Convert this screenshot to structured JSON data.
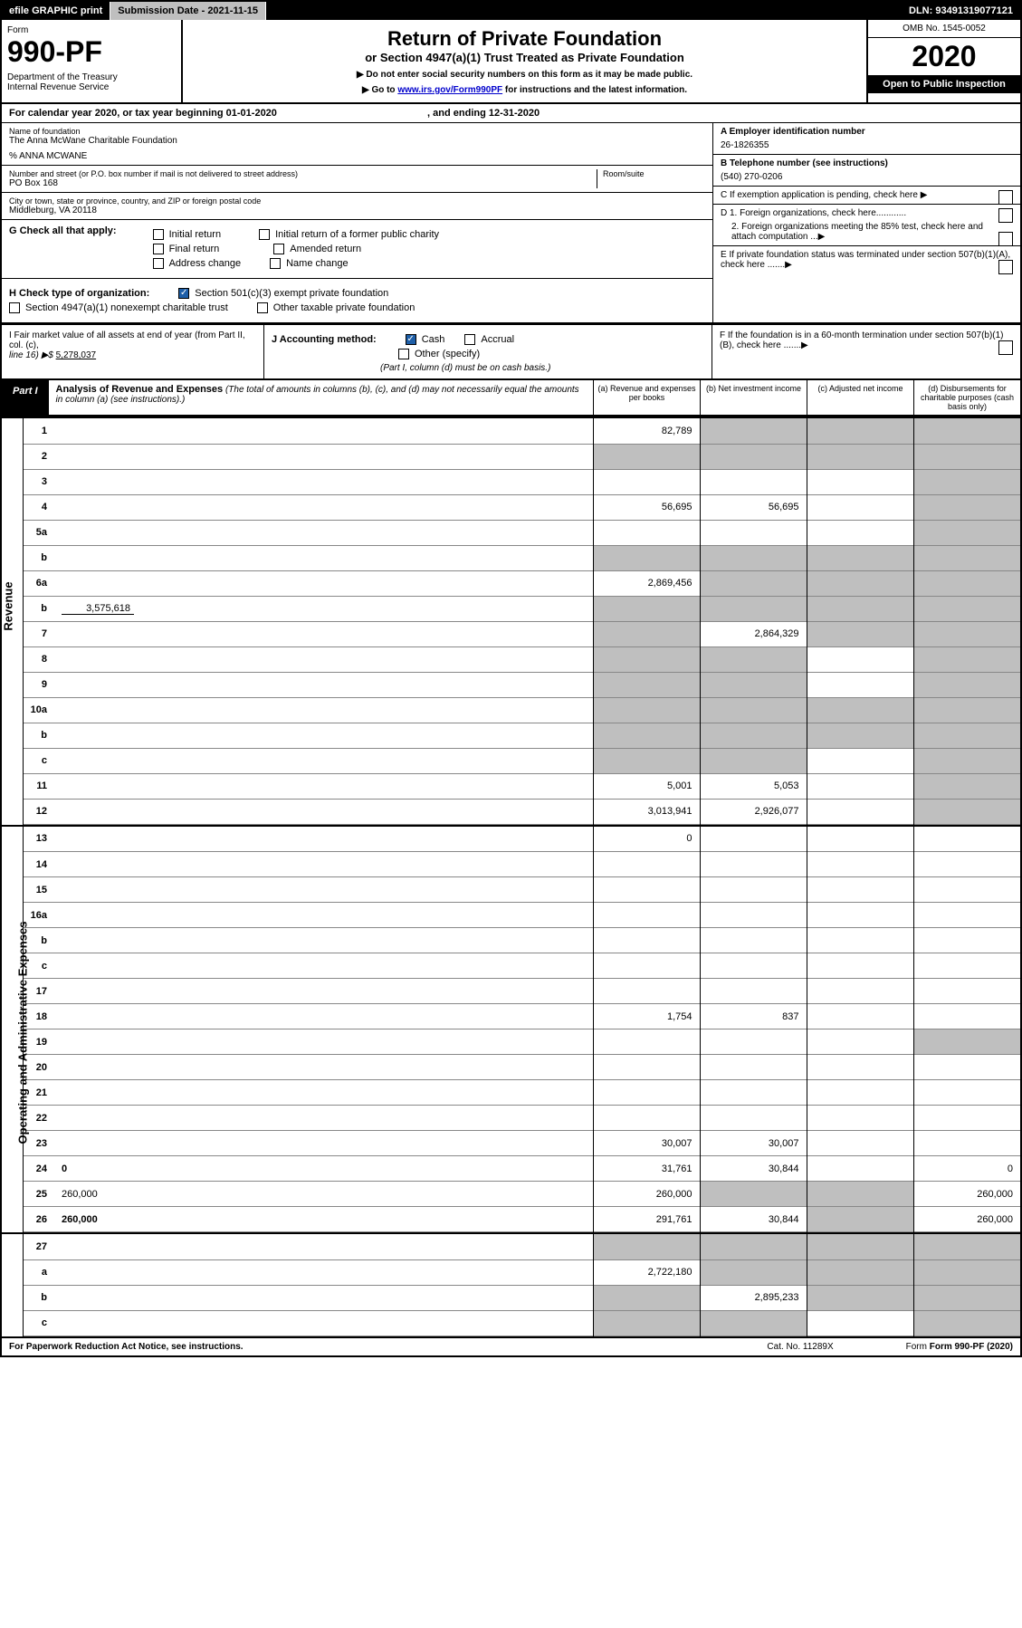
{
  "topbar": {
    "efile": "efile GRAPHIC print",
    "subdate_label": "Submission Date - 2021-11-15",
    "dln": "DLN: 93491319077121"
  },
  "header": {
    "form_label": "Form",
    "form_num": "990-PF",
    "dept": "Department of the Treasury\nInternal Revenue Service",
    "title": "Return of Private Foundation",
    "subtitle": "or Section 4947(a)(1) Trust Treated as Private Foundation",
    "instr1": "▶ Do not enter social security numbers on this form as it may be made public.",
    "instr2_pre": "▶ Go to ",
    "instr2_link": "www.irs.gov/Form990PF",
    "instr2_post": " for instructions and the latest information.",
    "omb": "OMB No. 1545-0052",
    "year": "2020",
    "open": "Open to Public Inspection"
  },
  "calendar": {
    "text_pre": "For calendar year 2020, or tax year beginning 01-01-2020",
    "text_mid": ", and ending 12-31-2020"
  },
  "foundation": {
    "name_label": "Name of foundation",
    "name": "The Anna McWane Charitable Foundation",
    "care_of": "% ANNA MCWANE",
    "addr_label": "Number and street (or P.O. box number if mail is not delivered to street address)",
    "addr": "PO Box 168",
    "room_label": "Room/suite",
    "city_label": "City or town, state or province, country, and ZIP or foreign postal code",
    "city": "Middleburg, VA  20118",
    "ein_label": "A Employer identification number",
    "ein": "26-1826355",
    "phone_label": "B Telephone number (see instructions)",
    "phone": "(540) 270-0206",
    "c_label": "C If exemption application is pending, check here"
  },
  "checks": {
    "g_label": "G Check all that apply:",
    "g_opts": [
      "Initial return",
      "Initial return of a former public charity",
      "Final return",
      "Amended return",
      "Address change",
      "Name change"
    ],
    "h_label": "H Check type of organization:",
    "h_opts": [
      "Section 501(c)(3) exempt private foundation",
      "Section 4947(a)(1) nonexempt charitable trust",
      "Other taxable private foundation"
    ],
    "d1": "D 1. Foreign organizations, check here............",
    "d2": "2. Foreign organizations meeting the 85% test, check here and attach computation ...",
    "e": "E  If private foundation status was terminated under section 507(b)(1)(A), check here .......",
    "f": "F  If the foundation is in a 60-month termination under section 507(b)(1)(B), check here .......",
    "i_label": "I Fair market value of all assets at end of year (from Part II, col. (c),",
    "i_line": "line 16) ▶$",
    "i_val": "5,278,037",
    "j_label": "J Accounting method:",
    "j_cash": "Cash",
    "j_accrual": "Accrual",
    "j_other": "Other (specify)",
    "j_note": "(Part I, column (d) must be on cash basis.)"
  },
  "part1": {
    "label": "Part I",
    "title": "Analysis of Revenue and Expenses",
    "note": "(The total of amounts in columns (b), (c), and (d) may not necessarily equal the amounts in column (a) (see instructions).)",
    "col_a": "(a)   Revenue and expenses per books",
    "col_b": "(b)   Net investment income",
    "col_c": "(c)  Adjusted net income",
    "col_d": "(d)  Disbursements for charitable purposes (cash basis only)"
  },
  "sections": {
    "revenue": "Revenue",
    "expenses": "Operating and Administrative Expenses"
  },
  "rows": [
    {
      "n": "1",
      "d": "",
      "a": "82,789",
      "b": "",
      "c": "",
      "shade": [
        "b",
        "c",
        "d"
      ]
    },
    {
      "n": "2",
      "d": "",
      "a": "",
      "b": "",
      "c": "",
      "shade": [
        "a",
        "b",
        "c",
        "d"
      ]
    },
    {
      "n": "3",
      "d": "",
      "a": "",
      "b": "",
      "c": "",
      "shade": [
        "d"
      ]
    },
    {
      "n": "4",
      "d": "",
      "a": "56,695",
      "b": "56,695",
      "c": "",
      "shade": [
        "d"
      ]
    },
    {
      "n": "5a",
      "d": "",
      "a": "",
      "b": "",
      "c": "",
      "shade": [
        "d"
      ]
    },
    {
      "n": "b",
      "d": "",
      "a": "",
      "b": "",
      "c": "",
      "shade": [
        "a",
        "b",
        "c",
        "d"
      ]
    },
    {
      "n": "6a",
      "d": "",
      "a": "2,869,456",
      "b": "",
      "c": "",
      "shade": [
        "b",
        "c",
        "d"
      ]
    },
    {
      "n": "b",
      "d": "",
      "inline": "3,575,618",
      "a": "",
      "b": "",
      "c": "",
      "shade": [
        "a",
        "b",
        "c",
        "d"
      ]
    },
    {
      "n": "7",
      "d": "",
      "a": "",
      "b": "2,864,329",
      "c": "",
      "shade": [
        "a",
        "c",
        "d"
      ]
    },
    {
      "n": "8",
      "d": "",
      "a": "",
      "b": "",
      "c": "",
      "shade": [
        "a",
        "b",
        "d"
      ]
    },
    {
      "n": "9",
      "d": "",
      "a": "",
      "b": "",
      "c": "",
      "shade": [
        "a",
        "b",
        "d"
      ]
    },
    {
      "n": "10a",
      "d": "",
      "a": "",
      "b": "",
      "c": "",
      "shade": [
        "a",
        "b",
        "c",
        "d"
      ]
    },
    {
      "n": "b",
      "d": "",
      "a": "",
      "b": "",
      "c": "",
      "shade": [
        "a",
        "b",
        "c",
        "d"
      ]
    },
    {
      "n": "c",
      "d": "",
      "a": "",
      "b": "",
      "c": "",
      "shade": [
        "a",
        "b",
        "d"
      ]
    },
    {
      "n": "11",
      "d": "",
      "a": "5,001",
      "b": "5,053",
      "c": "",
      "shade": [
        "d"
      ]
    },
    {
      "n": "12",
      "d": "",
      "bold": true,
      "a": "3,013,941",
      "b": "2,926,077",
      "c": "",
      "shade": [
        "d"
      ]
    }
  ],
  "exp_rows": [
    {
      "n": "13",
      "d": "",
      "a": "0",
      "b": "",
      "c": ""
    },
    {
      "n": "14",
      "d": "",
      "a": "",
      "b": "",
      "c": ""
    },
    {
      "n": "15",
      "d": "",
      "a": "",
      "b": "",
      "c": ""
    },
    {
      "n": "16a",
      "d": "",
      "a": "",
      "b": "",
      "c": ""
    },
    {
      "n": "b",
      "d": "",
      "a": "",
      "b": "",
      "c": ""
    },
    {
      "n": "c",
      "d": "",
      "a": "",
      "b": "",
      "c": ""
    },
    {
      "n": "17",
      "d": "",
      "a": "",
      "b": "",
      "c": ""
    },
    {
      "n": "18",
      "d": "",
      "a": "1,754",
      "b": "837",
      "c": ""
    },
    {
      "n": "19",
      "d": "",
      "a": "",
      "b": "",
      "c": "",
      "shade": [
        "d"
      ]
    },
    {
      "n": "20",
      "d": "",
      "a": "",
      "b": "",
      "c": ""
    },
    {
      "n": "21",
      "d": "",
      "a": "",
      "b": "",
      "c": ""
    },
    {
      "n": "22",
      "d": "",
      "a": "",
      "b": "",
      "c": ""
    },
    {
      "n": "23",
      "d": "",
      "a": "30,007",
      "b": "30,007",
      "c": ""
    },
    {
      "n": "24",
      "d": "0",
      "bold": true,
      "a": "31,761",
      "b": "30,844",
      "c": ""
    },
    {
      "n": "25",
      "d": "260,000",
      "a": "260,000",
      "b": "",
      "c": "",
      "shade": [
        "b",
        "c"
      ]
    },
    {
      "n": "26",
      "d": "260,000",
      "bold": true,
      "a": "291,761",
      "b": "30,844",
      "c": "",
      "shade": [
        "c"
      ]
    }
  ],
  "bottom_rows": [
    {
      "n": "27",
      "d": "",
      "a": "",
      "b": "",
      "c": "",
      "shade": [
        "a",
        "b",
        "c",
        "d"
      ]
    },
    {
      "n": "a",
      "d": "",
      "bold": true,
      "a": "2,722,180",
      "b": "",
      "c": "",
      "shade": [
        "b",
        "c",
        "d"
      ]
    },
    {
      "n": "b",
      "d": "",
      "bold": true,
      "a": "",
      "b": "2,895,233",
      "c": "",
      "shade": [
        "a",
        "c",
        "d"
      ]
    },
    {
      "n": "c",
      "d": "",
      "bold": true,
      "a": "",
      "b": "",
      "c": "",
      "shade": [
        "a",
        "b",
        "d"
      ]
    }
  ],
  "footer": {
    "left": "For Paperwork Reduction Act Notice, see instructions.",
    "mid": "Cat. No. 11289X",
    "right": "Form 990-PF (2020)"
  }
}
